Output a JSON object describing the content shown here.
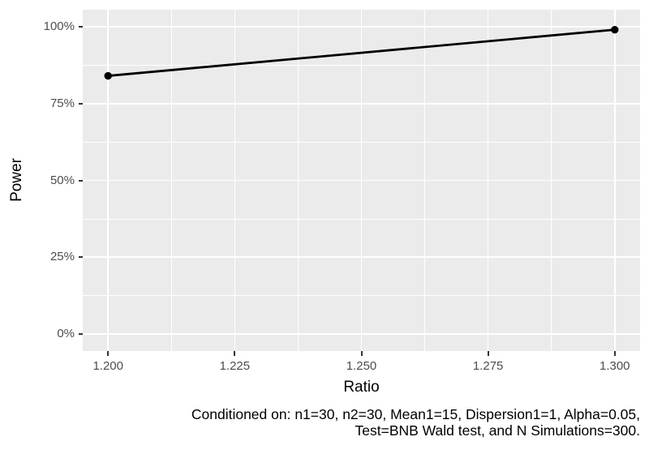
{
  "figure": {
    "background": "#FFFFFF",
    "caption": {
      "line1": "Conditioned on: n1=30, n2=30, Mean1=15, Dispersion1=1, Alpha=0.05,",
      "line2": "Test=BNB Wald test, and N Simulations=300."
    }
  },
  "chart_data": {
    "type": "line",
    "title": "",
    "xlabel": "Ratio",
    "ylabel": "Power",
    "x": [
      1.2,
      1.3
    ],
    "series": [
      {
        "name": "Power",
        "values": [
          84,
          99
        ],
        "unit": "%",
        "line_color": "#000000",
        "point_color": "#000000"
      }
    ],
    "x_range": [
      1.195,
      1.305
    ],
    "y_range": [
      -5.5,
      105.5
    ],
    "x_ticks": [
      {
        "value": 1.2,
        "label": "1.200"
      },
      {
        "value": 1.225,
        "label": "1.225"
      },
      {
        "value": 1.25,
        "label": "1.250"
      },
      {
        "value": 1.275,
        "label": "1.275"
      },
      {
        "value": 1.3,
        "label": "1.300"
      }
    ],
    "y_ticks": [
      {
        "value": 0,
        "label": "0%"
      },
      {
        "value": 25,
        "label": "25%"
      },
      {
        "value": 50,
        "label": "50%"
      },
      {
        "value": 75,
        "label": "75%"
      },
      {
        "value": 100,
        "label": "100%"
      }
    ],
    "x_minor": [
      1.2125,
      1.2375,
      1.2625,
      1.2875
    ],
    "y_minor": [
      12.5,
      37.5,
      62.5,
      87.5
    ],
    "grid": true,
    "legend": "none",
    "theme": {
      "panel_bg": "#EBEBEB",
      "grid_color": "#FFFFFF",
      "axis_text_color": "#4D4D4D",
      "axis_title_color": "#000000",
      "tick_mark_color": "#333333",
      "caption_color": "#000000"
    }
  }
}
